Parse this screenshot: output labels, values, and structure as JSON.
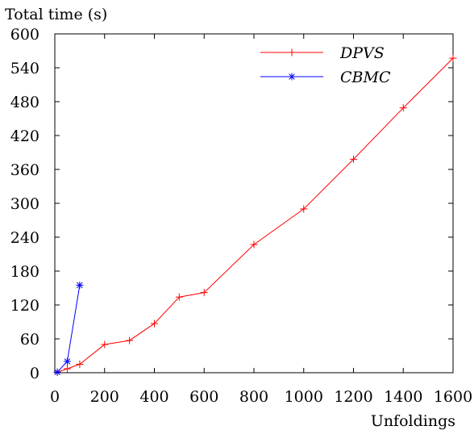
{
  "chart_data": {
    "type": "line",
    "ylabel": "Total time (s)",
    "xlabel": "Unfoldings",
    "xlim": [
      0,
      1600
    ],
    "ylim": [
      0,
      600
    ],
    "xticks": [
      0,
      200,
      400,
      600,
      800,
      1000,
      1200,
      1400,
      1600
    ],
    "yticks": [
      0,
      60,
      120,
      180,
      240,
      300,
      360,
      420,
      480,
      540,
      600
    ],
    "grid": false,
    "legend_position": "top-right",
    "series": [
      {
        "name": "DPVS",
        "color": "#ff0000",
        "marker": "plus",
        "x": [
          10,
          50,
          100,
          200,
          300,
          400,
          500,
          600,
          800,
          1000,
          1200,
          1400,
          1600
        ],
        "y": [
          1,
          7,
          15,
          50,
          57,
          87,
          134,
          142,
          227,
          290,
          378,
          469,
          557
        ]
      },
      {
        "name": "CBMC",
        "color": "#0000ff",
        "marker": "star",
        "x": [
          10,
          50,
          100
        ],
        "y": [
          1,
          20,
          155
        ]
      }
    ]
  }
}
